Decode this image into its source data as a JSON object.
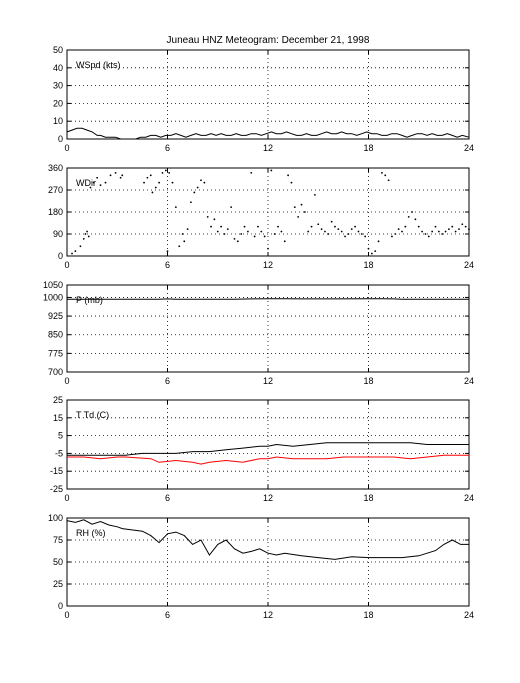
{
  "title": "Juneau HNZ Meteogram:   December 21, 1998",
  "chart_data": [
    {
      "type": "line",
      "panel_label": "WSpd (kts)",
      "xlim": [
        0,
        24
      ],
      "ylim": [
        0,
        50
      ],
      "xticks": [
        0,
        6,
        12,
        18,
        24
      ],
      "yticks": [
        0,
        10,
        20,
        30,
        40,
        50
      ],
      "grid": true,
      "series": [
        {
          "color": "#000000",
          "style": "line",
          "x": [
            0.0,
            0.3,
            0.6,
            0.9,
            1.2,
            1.5,
            1.8,
            2.0,
            2.3,
            2.6,
            2.9,
            3.2,
            3.5,
            3.8,
            4.1,
            4.4,
            4.7,
            5.0,
            5.3,
            5.6,
            5.9,
            6.2,
            6.5,
            6.8,
            7.1,
            7.4,
            7.7,
            8.0,
            8.3,
            8.6,
            8.9,
            9.2,
            9.5,
            9.8,
            10.1,
            10.4,
            10.7,
            11.0,
            11.3,
            11.6,
            11.9,
            12.2,
            12.5,
            12.8,
            13.1,
            13.4,
            13.7,
            14.0,
            14.3,
            14.6,
            14.9,
            15.2,
            15.5,
            15.8,
            16.1,
            16.4,
            16.7,
            17.0,
            17.3,
            17.6,
            17.9,
            18.2,
            18.5,
            18.8,
            19.1,
            19.4,
            19.7,
            20.0,
            20.3,
            20.6,
            20.9,
            21.2,
            21.5,
            21.8,
            22.1,
            22.4,
            22.7,
            23.0,
            23.3,
            23.6,
            24.0
          ],
          "y": [
            4,
            5,
            6,
            6,
            5,
            4,
            2,
            2,
            1,
            1,
            1,
            0,
            0,
            0,
            0,
            1,
            1,
            2,
            2,
            1,
            2,
            2,
            3,
            2,
            1,
            2,
            3,
            2,
            2,
            3,
            2,
            3,
            2,
            2,
            3,
            2,
            2,
            3,
            3,
            2,
            3,
            4,
            3,
            3,
            4,
            3,
            2,
            2,
            3,
            2,
            2,
            3,
            4,
            3,
            3,
            4,
            3,
            3,
            2,
            3,
            4,
            3,
            3,
            2,
            2,
            3,
            3,
            2,
            1,
            2,
            3,
            3,
            2,
            3,
            2,
            2,
            3,
            2,
            1,
            2,
            1
          ]
        }
      ]
    },
    {
      "type": "scatter",
      "panel_label": "WDir",
      "xlim": [
        0,
        24
      ],
      "ylim": [
        0,
        360
      ],
      "xticks": [
        0,
        6,
        12,
        18,
        24
      ],
      "yticks": [
        0,
        90,
        180,
        270,
        360
      ],
      "grid": true,
      "series": [
        {
          "color": "#000000",
          "style": "dots",
          "x": [
            0.3,
            0.5,
            0.8,
            1.0,
            1.1,
            1.2,
            1.3,
            1.4,
            1.6,
            1.8,
            2.0,
            2.3,
            2.6,
            2.9,
            3.2,
            3.3,
            4.6,
            4.8,
            5.0,
            5.1,
            5.3,
            5.5,
            5.7,
            5.9,
            6.0,
            6.1,
            6.3,
            6.5,
            6.7,
            6.9,
            7.0,
            7.2,
            7.4,
            7.6,
            7.8,
            8.0,
            8.2,
            8.4,
            8.6,
            8.8,
            9.0,
            9.2,
            9.4,
            9.6,
            9.8,
            10.0,
            10.2,
            10.4,
            10.6,
            10.8,
            11.0,
            11.2,
            11.4,
            11.6,
            11.8,
            12.0,
            12.2,
            12.4,
            12.6,
            12.8,
            13.0,
            13.2,
            13.4,
            13.6,
            13.8,
            14.0,
            14.2,
            14.4,
            14.6,
            14.8,
            15.0,
            15.2,
            15.4,
            15.6,
            15.8,
            16.0,
            16.2,
            16.4,
            16.6,
            16.8,
            17.0,
            17.2,
            17.4,
            17.6,
            17.8,
            18.0,
            18.2,
            18.4,
            18.6,
            18.8,
            19.0,
            19.2,
            19.4,
            19.6,
            19.8,
            20.0,
            20.2,
            20.4,
            20.6,
            20.8,
            21.0,
            21.2,
            21.4,
            21.6,
            21.8,
            22.0,
            22.2,
            22.4,
            22.6,
            22.8,
            23.0,
            23.2,
            23.4,
            23.6,
            23.8,
            24.0
          ],
          "y": [
            10,
            20,
            40,
            70,
            90,
            100,
            80,
            280,
            300,
            320,
            290,
            300,
            330,
            340,
            320,
            330,
            300,
            320,
            330,
            260,
            280,
            300,
            340,
            350,
            20,
            340,
            300,
            200,
            40,
            90,
            60,
            110,
            220,
            260,
            280,
            310,
            300,
            160,
            120,
            150,
            100,
            120,
            90,
            110,
            200,
            70,
            60,
            90,
            120,
            100,
            340,
            80,
            120,
            100,
            80,
            30,
            350,
            90,
            120,
            100,
            60,
            330,
            300,
            200,
            160,
            210,
            180,
            100,
            120,
            250,
            130,
            110,
            100,
            90,
            140,
            120,
            110,
            100,
            80,
            90,
            110,
            120,
            100,
            90,
            80,
            30,
            10,
            20,
            60,
            340,
            330,
            310,
            80,
            90,
            110,
            100,
            120,
            160,
            180,
            150,
            120,
            100,
            90,
            80,
            100,
            120,
            100,
            90,
            100,
            110,
            120,
            100,
            110,
            130,
            120,
            110
          ]
        }
      ]
    },
    {
      "type": "line",
      "panel_label": "P (mb)",
      "xlim": [
        0,
        24
      ],
      "ylim": [
        700,
        1050
      ],
      "xticks": [
        0,
        6,
        12,
        18,
        24
      ],
      "yticks": [
        700,
        775,
        850,
        925,
        1000,
        1050
      ],
      "grid": true,
      "series": [
        {
          "color": "#000000",
          "style": "line",
          "x": [
            0.0,
            1.0,
            2.0,
            3.0,
            3.5,
            4.5,
            5.5,
            6.0,
            6.5,
            8.0,
            10.0,
            11.0,
            12.0,
            13.0,
            14.0,
            16.0,
            18.0,
            19.5,
            20.0,
            22.0,
            24.0
          ],
          "y": [
            993,
            993,
            993,
            993,
            993,
            993,
            993,
            994,
            993,
            993,
            993,
            994,
            995,
            995,
            994,
            994,
            995,
            994,
            993,
            993,
            993
          ]
        }
      ]
    },
    {
      "type": "line",
      "panel_label": "T Td (C)",
      "xlim": [
        0,
        24
      ],
      "ylim": [
        -25,
        25
      ],
      "xticks": [
        0,
        6,
        12,
        18,
        24
      ],
      "yticks": [
        -25,
        -15,
        -5,
        5,
        15,
        25
      ],
      "grid": true,
      "series": [
        {
          "color": "#000000",
          "style": "line",
          "x": [
            0.0,
            1.0,
            2.0,
            3.0,
            3.5,
            4.5,
            5.5,
            6.5,
            7.5,
            8.5,
            9.5,
            10.5,
            11.5,
            12.0,
            12.5,
            13.5,
            14.5,
            15.5,
            16.5,
            17.5,
            18.5,
            19.5,
            20.5,
            21.5,
            22.5,
            23.5,
            24.0
          ],
          "y": [
            -6,
            -6,
            -6,
            -6,
            -6,
            -5,
            -5,
            -5,
            -4,
            -4,
            -3,
            -2,
            -1,
            -1,
            0,
            -1,
            0,
            1,
            1,
            1,
            1,
            1,
            1,
            0,
            0,
            0,
            0
          ]
        },
        {
          "color": "#ff0000",
          "style": "line",
          "x": [
            0.0,
            1.0,
            2.0,
            3.0,
            3.5,
            5.0,
            5.5,
            6.5,
            7.5,
            8.0,
            8.5,
            9.5,
            10.5,
            11.5,
            12.0,
            12.5,
            13.5,
            14.5,
            15.5,
            16.5,
            17.5,
            18.5,
            19.5,
            20.5,
            21.5,
            22.5,
            23.5,
            24.0
          ],
          "y": [
            -7,
            -7,
            -8,
            -7,
            -7,
            -8,
            -10,
            -9,
            -10,
            -11,
            -10,
            -9,
            -10,
            -8,
            -8,
            -7,
            -8,
            -8,
            -8,
            -7,
            -7,
            -7,
            -7,
            -8,
            -7,
            -6,
            -6,
            -6
          ]
        }
      ]
    },
    {
      "type": "line",
      "panel_label": "RH (%)",
      "xlim": [
        0,
        24
      ],
      "ylim": [
        0,
        100
      ],
      "xticks": [
        0,
        6,
        12,
        18,
        24
      ],
      "yticks": [
        0,
        25,
        50,
        75,
        100
      ],
      "grid": true,
      "series": [
        {
          "color": "#000000",
          "style": "line",
          "x": [
            0.0,
            0.5,
            1.0,
            1.5,
            2.0,
            2.5,
            3.0,
            3.3,
            4.5,
            5.0,
            5.5,
            6.0,
            6.5,
            7.0,
            7.5,
            8.0,
            8.5,
            9.0,
            9.5,
            10.0,
            10.5,
            11.0,
            11.5,
            12.0,
            12.5,
            13.0,
            14.0,
            15.0,
            16.0,
            17.0,
            18.0,
            19.0,
            20.0,
            21.0,
            22.0,
            22.5,
            23.0,
            23.5,
            24.0
          ],
          "y": [
            97,
            95,
            98,
            93,
            96,
            92,
            90,
            88,
            85,
            80,
            72,
            82,
            84,
            80,
            70,
            75,
            58,
            70,
            75,
            65,
            60,
            62,
            65,
            60,
            58,
            60,
            57,
            55,
            53,
            56,
            55,
            55,
            55,
            57,
            63,
            70,
            75,
            70,
            70
          ]
        }
      ]
    }
  ]
}
